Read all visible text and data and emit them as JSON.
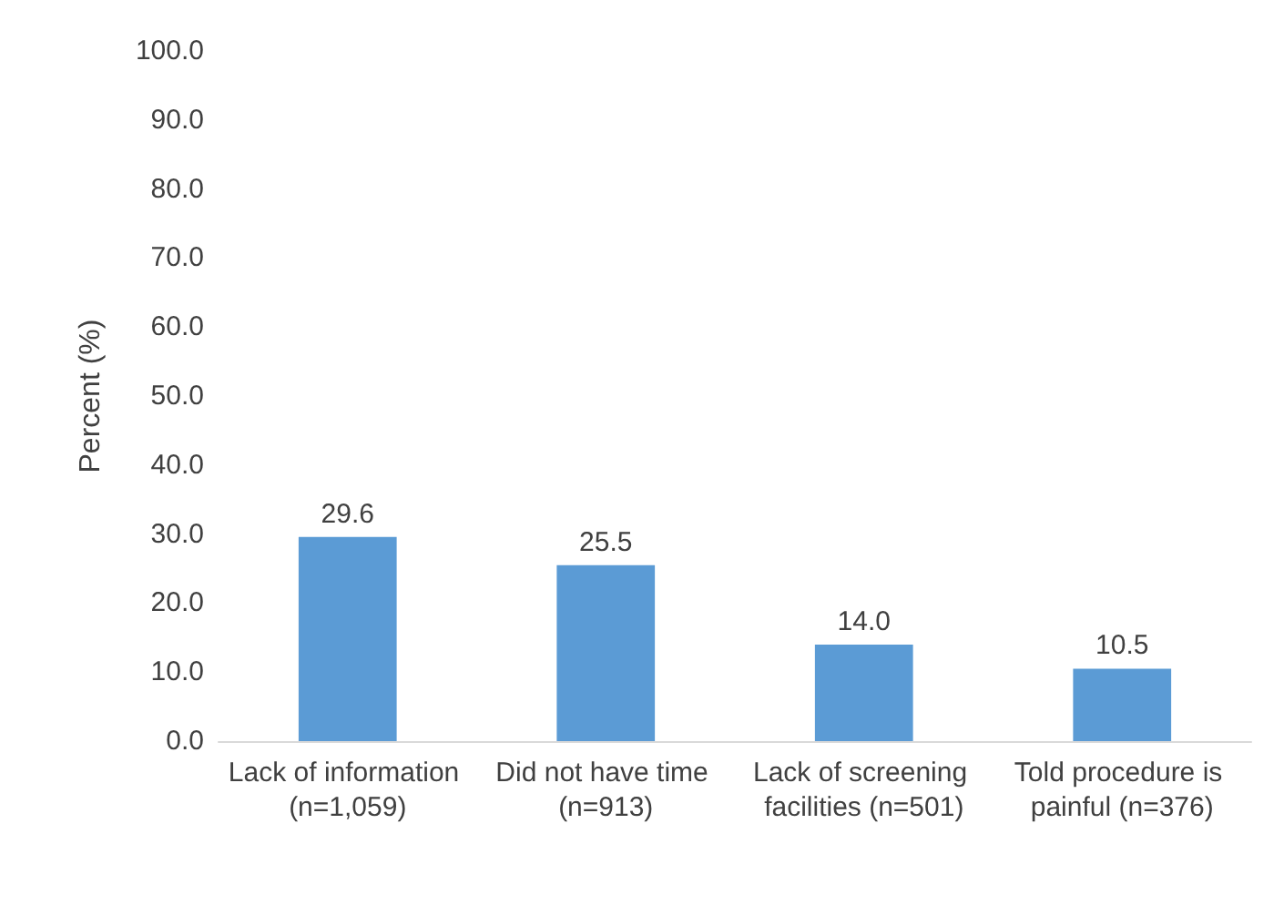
{
  "chart_data": {
    "type": "bar",
    "ylabel": "Percent (%)",
    "categories": [
      "Lack of information (n=1,059)",
      "Did not have time (n=913)",
      "Lack of screening facilities (n=501)",
      "Told procedure is painful (n=376)"
    ],
    "values": [
      29.6,
      25.5,
      14.0,
      10.5
    ],
    "value_labels": [
      "29.6",
      "25.5",
      "14.0",
      "10.5"
    ],
    "color": "#5b9bd5",
    "ylim": [
      0,
      100
    ],
    "yticks": [
      {
        "value": 0,
        "label": "0.0"
      },
      {
        "value": 10,
        "label": "10.0"
      },
      {
        "value": 20,
        "label": "20.0"
      },
      {
        "value": 30,
        "label": "30.0"
      },
      {
        "value": 40,
        "label": "40.0"
      },
      {
        "value": 50,
        "label": "50.0"
      },
      {
        "value": 60,
        "label": "60.0"
      },
      {
        "value": 70,
        "label": "70.0"
      },
      {
        "value": 80,
        "label": "80.0"
      },
      {
        "value": 90,
        "label": "90.0"
      },
      {
        "value": 100,
        "label": "100.0"
      }
    ],
    "grid": false
  }
}
